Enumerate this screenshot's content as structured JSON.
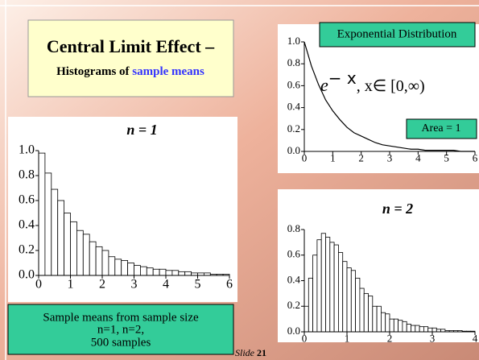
{
  "title": "Central Limit Effect –",
  "subtitle": {
    "prefix": "Histograms of",
    "highlight": "sample means"
  },
  "caption": [
    "Sample means from sample size",
    "n=1, n=2,",
    "500 samples"
  ],
  "slide": {
    "word": "Slide",
    "number": "21"
  },
  "chart_data": [
    {
      "type": "line",
      "title": "Exponential Distribution",
      "formula": {
        "base": "e",
        "exponent": "− x",
        "domain": ",  x∈ [0,∞)"
      },
      "annotation": "Area = 1",
      "x": [
        0,
        0.25,
        0.5,
        0.75,
        1,
        1.25,
        1.5,
        1.75,
        2,
        2.25,
        2.5,
        2.75,
        3,
        3.25,
        3.5,
        3.75,
        4,
        4.25,
        4.5,
        4.75,
        5,
        5.25,
        5.5,
        5.75,
        6
      ],
      "values": [
        1,
        0.78,
        0.61,
        0.47,
        0.37,
        0.29,
        0.22,
        0.17,
        0.14,
        0.11,
        0.08,
        0.06,
        0.05,
        0.04,
        0.03,
        0.02,
        0.02,
        0.01,
        0.01,
        0.01,
        0.01,
        0.01,
        0,
        0,
        0
      ],
      "color": "#000000",
      "xlim": [
        0,
        6
      ],
      "xticks": [
        0,
        1,
        2,
        3,
        4,
        5,
        6
      ],
      "ylim": [
        0,
        1
      ],
      "yticks": [
        {
          "value": 0,
          "label": "0.0"
        },
        0.2,
        0.4,
        0.6,
        0.8,
        {
          "value": 1,
          "label": "1.0"
        }
      ]
    },
    {
      "type": "histogram",
      "title": "n = 1",
      "bins": [
        0,
        0.2,
        0.4,
        0.6,
        0.8,
        1,
        1.2,
        1.4,
        1.6,
        1.8,
        2,
        2.2,
        2.4,
        2.6,
        2.8,
        3,
        3.2,
        3.4,
        3.6,
        3.8,
        4,
        4.2,
        4.4,
        4.6,
        4.8,
        5,
        5.2,
        5.4,
        5.6,
        5.8,
        6
      ],
      "values": [
        0.98,
        0.82,
        0.69,
        0.6,
        0.5,
        0.43,
        0.36,
        0.33,
        0.27,
        0.23,
        0.2,
        0.15,
        0.13,
        0.12,
        0.1,
        0.08,
        0.07,
        0.06,
        0.05,
        0.05,
        0.04,
        0.04,
        0.03,
        0.03,
        0.02,
        0.02,
        0.02,
        0.01,
        0.01,
        0.01
      ],
      "color": "#ffffff",
      "xlim": [
        0,
        6
      ],
      "xticks": [
        0,
        1,
        2,
        3,
        4,
        5,
        6
      ],
      "ylim": [
        0,
        1
      ],
      "yticks": [
        {
          "value": 0,
          "label": "0.0"
        },
        0.2,
        0.4,
        0.6,
        0.8,
        {
          "value": 1,
          "label": "1.0"
        }
      ]
    },
    {
      "type": "histogram",
      "title": "n = 2",
      "bins": [
        0,
        0.1,
        0.2,
        0.3,
        0.4,
        0.5,
        0.6,
        0.7,
        0.8,
        0.9,
        1,
        1.1,
        1.2,
        1.3,
        1.4,
        1.5,
        1.6,
        1.7,
        1.8,
        1.9,
        2,
        2.1,
        2.2,
        2.3,
        2.4,
        2.5,
        2.6,
        2.7,
        2.8,
        2.9,
        3,
        3.1,
        3.2,
        3.3,
        3.4,
        3.5,
        3.6,
        3.7,
        3.8,
        3.9,
        4
      ],
      "values": [
        0.2,
        0.42,
        0.6,
        0.72,
        0.77,
        0.74,
        0.7,
        0.68,
        0.62,
        0.55,
        0.5,
        0.48,
        0.42,
        0.34,
        0.3,
        0.28,
        0.2,
        0.2,
        0.15,
        0.14,
        0.1,
        0.1,
        0.09,
        0.08,
        0.06,
        0.05,
        0.05,
        0.04,
        0.04,
        0.03,
        0.03,
        0.02,
        0.02,
        0.01,
        0.01,
        0.01,
        0.01,
        0.005,
        0.005,
        0.005
      ],
      "color": "#ffffff",
      "xlim": [
        0,
        4
      ],
      "xticks": [
        0,
        1,
        2,
        3,
        4
      ],
      "ylim": [
        0,
        0.8
      ],
      "yticks": [
        {
          "value": 0,
          "label": "0.0"
        },
        0.2,
        0.4,
        0.6,
        0.8
      ]
    }
  ]
}
